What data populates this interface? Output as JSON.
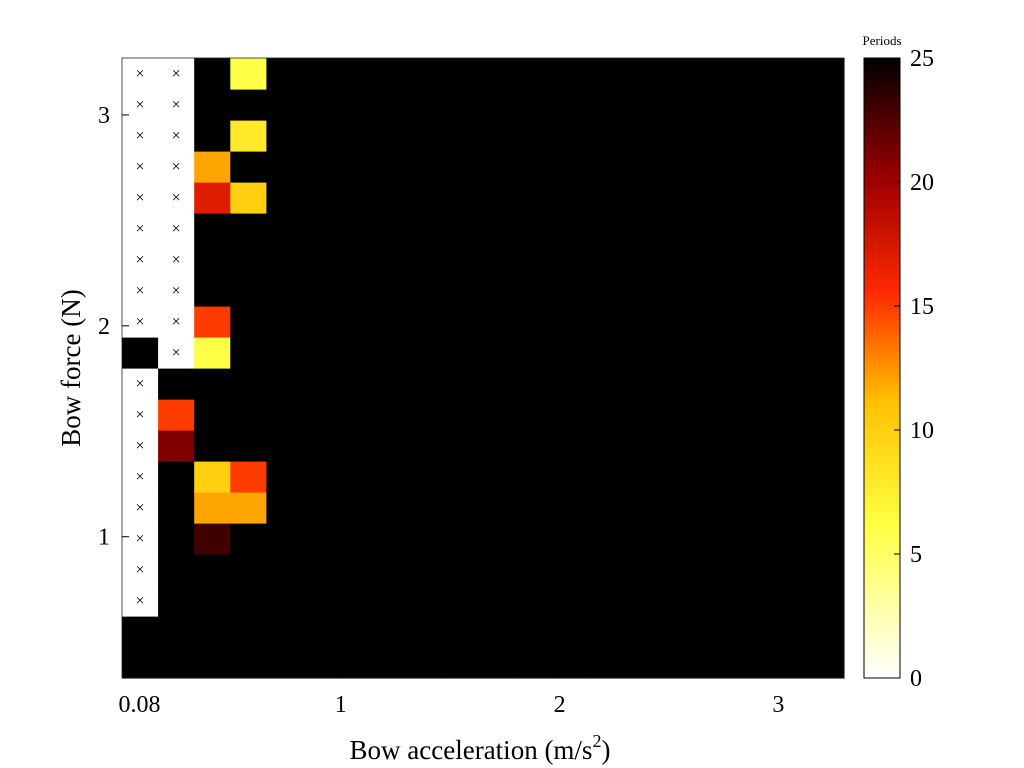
{
  "chart_data": {
    "type": "heatmap",
    "xlabel": "Bow acceleration (m/s",
    "xlabel_superscript": "2",
    "xlabel_suffix": ")",
    "ylabel": "Bow force (N)",
    "x_ticks": [
      {
        "value": 0.08,
        "label": "0.08"
      },
      {
        "value": 1,
        "label": "1"
      },
      {
        "value": 2,
        "label": "2"
      },
      {
        "value": 3,
        "label": "3"
      }
    ],
    "y_ticks": [
      {
        "value": 1,
        "label": "1"
      },
      {
        "value": 2,
        "label": "2"
      },
      {
        "value": 3,
        "label": "3"
      }
    ],
    "xlim": [
      0.0,
      3.3
    ],
    "ylim": [
      0.33,
      3.27
    ],
    "x_step": 0.16,
    "y_step": 0.147,
    "x_start": 0.08,
    "y_start": 0.4,
    "columns": 20,
    "rows": 20,
    "default_value": 25,
    "nonconvergent_marker": "×",
    "no_data_cells": [
      {
        "col": 0,
        "rows": [
          2,
          3,
          4,
          5,
          6,
          7,
          8,
          9,
          10,
          11,
          12,
          13,
          14,
          15,
          16,
          17,
          18,
          19
        ]
      },
      {
        "col": 1,
        "rows": [
          10,
          11,
          12,
          13,
          14,
          15,
          16,
          17,
          18,
          19
        ]
      }
    ],
    "marker_cells": [
      {
        "col": 0,
        "rows": [
          2,
          3,
          4,
          5,
          6,
          7,
          8,
          9,
          10,
          11,
          12,
          13,
          14,
          15,
          16,
          17,
          18,
          19
        ]
      },
      {
        "col": 1,
        "rows": [
          10,
          11,
          12,
          13,
          14,
          15,
          16,
          17,
          18,
          19
        ]
      }
    ],
    "cells": [
      {
        "col": 0,
        "row": 10,
        "value": 25
      },
      {
        "col": 1,
        "row": 8,
        "value": 15
      },
      {
        "col": 1,
        "row": 7,
        "value": 21
      },
      {
        "col": 2,
        "row": 19,
        "value": 25
      },
      {
        "col": 2,
        "row": 17,
        "value": 25
      },
      {
        "col": 2,
        "row": 16,
        "value": 12
      },
      {
        "col": 2,
        "row": 15,
        "value": 17
      },
      {
        "col": 2,
        "row": 11,
        "value": 15
      },
      {
        "col": 2,
        "row": 10,
        "value": 6
      },
      {
        "col": 2,
        "row": 6,
        "value": 10
      },
      {
        "col": 2,
        "row": 5,
        "value": 12
      },
      {
        "col": 2,
        "row": 4,
        "value": 23
      },
      {
        "col": 3,
        "row": 19,
        "value": 6
      },
      {
        "col": 3,
        "row": 17,
        "value": 8
      },
      {
        "col": 3,
        "row": 15,
        "value": 10
      },
      {
        "col": 3,
        "row": 6,
        "value": 15
      },
      {
        "col": 3,
        "row": 5,
        "value": 12
      }
    ],
    "colorbar": {
      "title": "Periods",
      "range": [
        0,
        25
      ],
      "ticks": [
        0,
        5,
        10,
        15,
        20,
        25
      ],
      "colormap": "hot (reversed)"
    }
  }
}
